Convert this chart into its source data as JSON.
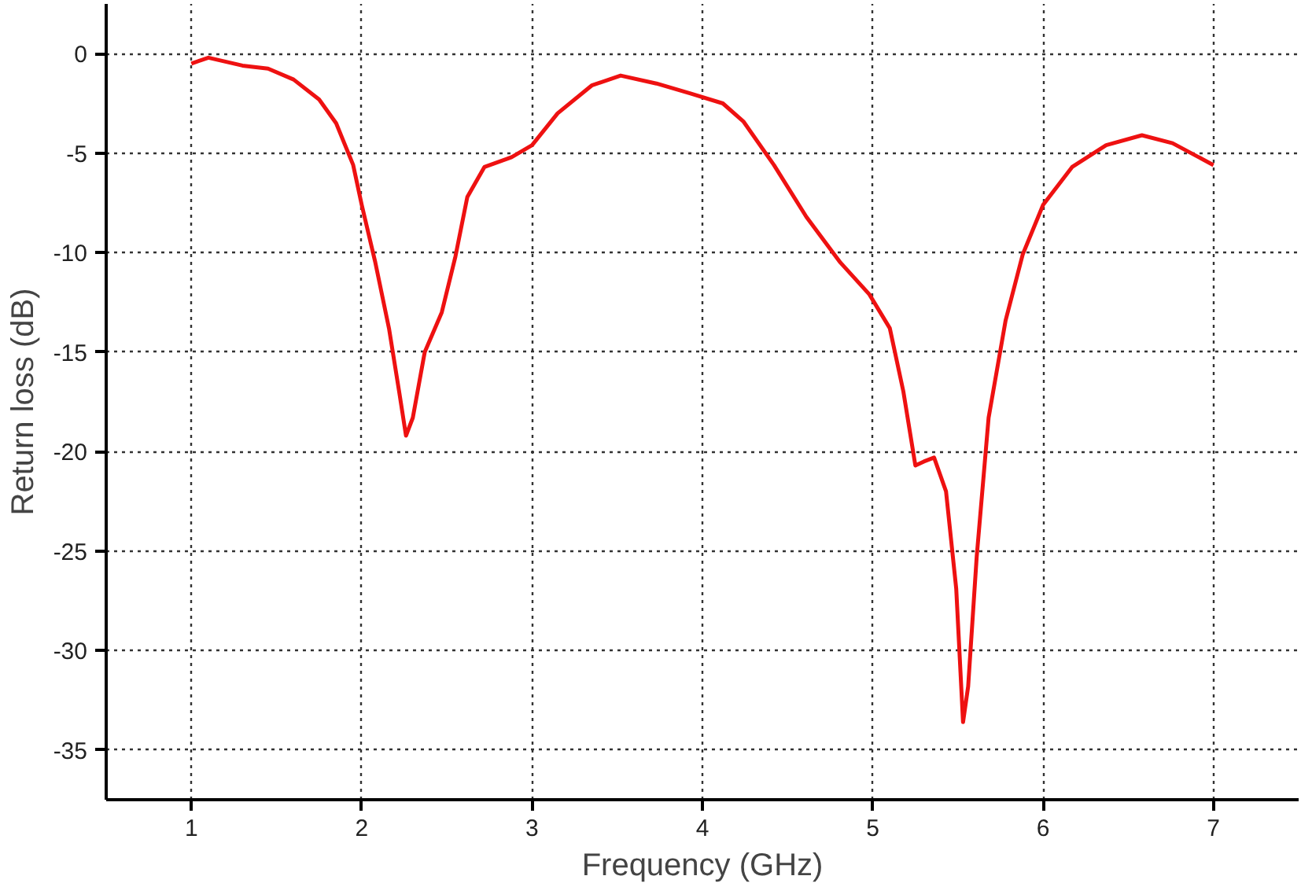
{
  "chart_data": {
    "type": "line",
    "xlabel": "Frequency (GHz)",
    "ylabel": "Return loss (dB)",
    "xlim": [
      0.5,
      7.5
    ],
    "ylim": [
      -37.5,
      2.5
    ],
    "xticks": [
      1,
      2,
      3,
      4,
      5,
      6,
      7
    ],
    "yticks": [
      -35,
      -30,
      -25,
      -20,
      -15,
      -10,
      -5,
      0
    ],
    "grid": true,
    "line_style": "solid",
    "marker": "none",
    "series": [
      {
        "color": "#ee1111",
        "x": [
          1.0,
          1.1,
          1.3,
          1.45,
          1.6,
          1.75,
          1.85,
          1.95,
          2.0,
          2.08,
          2.16,
          2.22,
          2.26,
          2.3,
          2.37,
          2.47,
          2.55,
          2.62,
          2.72,
          2.88,
          3.0,
          3.15,
          3.35,
          3.52,
          3.73,
          3.93,
          4.12,
          4.24,
          4.42,
          4.61,
          4.81,
          4.98,
          5.1,
          5.18,
          5.25,
          5.3,
          5.36,
          5.43,
          5.49,
          5.53,
          5.56,
          5.61,
          5.68,
          5.78,
          5.88,
          6.0,
          6.17,
          6.37,
          6.58,
          6.76,
          7.0
        ],
        "values": [
          -0.5,
          -0.2,
          -0.6,
          -0.75,
          -1.3,
          -2.3,
          -3.5,
          -5.6,
          -7.6,
          -10.5,
          -13.8,
          -17,
          -19.2,
          -18.3,
          -15,
          -13,
          -10.2,
          -7.2,
          -5.7,
          -5.2,
          -4.6,
          -3,
          -1.6,
          -1.1,
          -1.5,
          -2,
          -2.5,
          -3.4,
          -5.6,
          -8.2,
          -10.5,
          -12.1,
          -13.8,
          -17,
          -20.7,
          -20.5,
          -20.3,
          -22,
          -26.9,
          -33.6,
          -31.8,
          -25.3,
          -18.3,
          -13.4,
          -10.1,
          -7.6,
          -5.7,
          -4.6,
          -4.1,
          -4.5,
          -5.6
        ]
      }
    ]
  }
}
